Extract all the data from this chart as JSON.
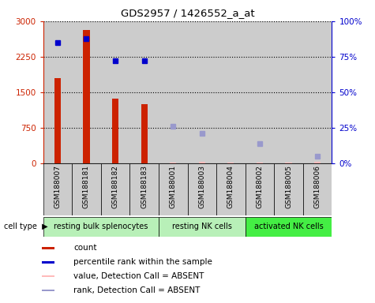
{
  "title": "GDS2957 / 1426552_a_at",
  "samples": [
    "GSM188007",
    "GSM188181",
    "GSM188182",
    "GSM188183",
    "GSM188001",
    "GSM188003",
    "GSM188004",
    "GSM188002",
    "GSM188005",
    "GSM188006"
  ],
  "bar_values": [
    1800,
    2820,
    1370,
    1260,
    null,
    null,
    null,
    null,
    null,
    null
  ],
  "bar_absent_values": [
    null,
    null,
    null,
    null,
    28,
    38,
    30,
    22,
    18,
    35
  ],
  "blue_dots_present": [
    85,
    88,
    72,
    72,
    null,
    null,
    null,
    null,
    null,
    null
  ],
  "blue_dots_absent": [
    null,
    null,
    null,
    null,
    26,
    21,
    null,
    14,
    null,
    5
  ],
  "ylim_left": [
    0,
    3000
  ],
  "ylim_right": [
    0,
    100
  ],
  "yticks_left": [
    0,
    750,
    1500,
    2250,
    3000
  ],
  "yticks_right": [
    0,
    25,
    50,
    75,
    100
  ],
  "ytick_labels_left": [
    "0",
    "750",
    "1500",
    "2250",
    "3000"
  ],
  "ytick_labels_right": [
    "0%",
    "25%",
    "50%",
    "75%",
    "100%"
  ],
  "cell_groups": [
    {
      "label": "resting bulk splenocytes",
      "start": 0,
      "end": 4,
      "color": "#b8f0b8"
    },
    {
      "label": "resting NK cells",
      "start": 4,
      "end": 7,
      "color": "#b8f0b8"
    },
    {
      "label": "activated NK cells",
      "start": 7,
      "end": 10,
      "color": "#44ee44"
    }
  ],
  "bar_color": "#cc2200",
  "bar_absent_color": "#ffbbbb",
  "dot_present_color": "#0000cc",
  "dot_absent_color": "#9999cc",
  "bg_color": "#ffffff",
  "col_bg_color": "#cccccc",
  "legend_items": [
    {
      "label": "count",
      "color": "#cc2200"
    },
    {
      "label": "percentile rank within the sample",
      "color": "#0000cc"
    },
    {
      "label": "value, Detection Call = ABSENT",
      "color": "#ffbbbb"
    },
    {
      "label": "rank, Detection Call = ABSENT",
      "color": "#9999cc"
    }
  ]
}
